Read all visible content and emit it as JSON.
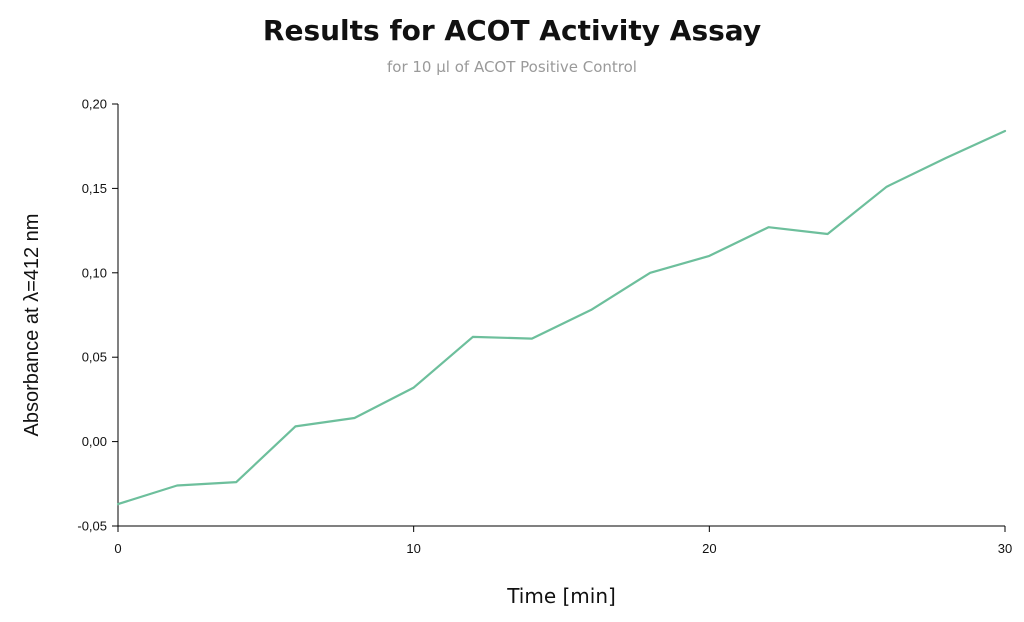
{
  "chart_data": {
    "type": "line",
    "title": "Results for ACOT Activity Assay",
    "subtitle": "for 10 µl of ACOT Positive Control",
    "xlabel": "Time [min]",
    "ylabel": "Absorbance at λ=412 nm",
    "xlim": [
      0,
      30
    ],
    "ylim": [
      -0.05,
      0.2
    ],
    "x_ticks": [
      0,
      10,
      20,
      30
    ],
    "x_tick_labels": [
      "0",
      "10",
      "20",
      "30"
    ],
    "y_ticks": [
      -0.05,
      0.0,
      0.05,
      0.1,
      0.15,
      0.2
    ],
    "y_tick_labels": [
      "-0,05",
      "0,00",
      "0,05",
      "0,10",
      "0,15",
      "0,20"
    ],
    "grid": false,
    "series": [
      {
        "color": "#6dbf9c",
        "x": [
          0,
          2,
          4,
          6,
          8,
          10,
          12,
          14,
          16,
          18,
          20,
          22,
          24,
          26,
          28,
          30
        ],
        "y": [
          -0.037,
          -0.026,
          -0.024,
          0.009,
          0.014,
          0.032,
          0.062,
          0.061,
          0.078,
          0.1,
          0.11,
          0.127,
          0.123,
          0.151,
          0.168,
          0.184
        ]
      }
    ]
  }
}
